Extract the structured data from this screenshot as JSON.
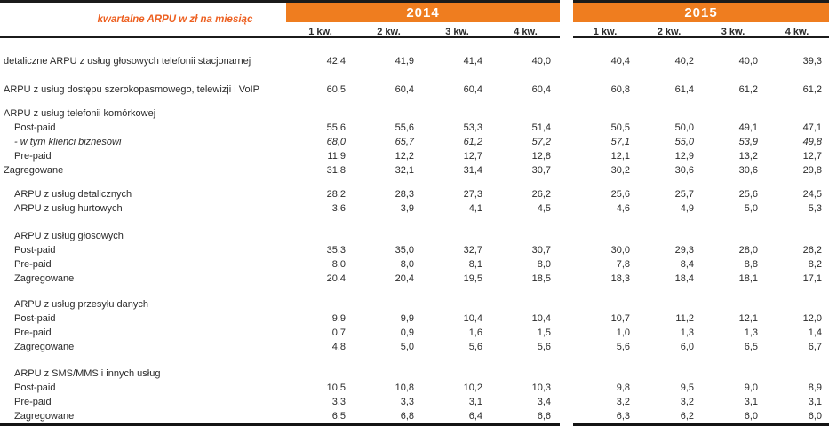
{
  "chart_data": {
    "type": "table",
    "title": "kwartalne ARPU w zł na miesiąc",
    "column_groups": [
      "2014",
      "2015"
    ],
    "quarter_labels": [
      "1 kw.",
      "2 kw.",
      "3 kw.",
      "4 kw."
    ],
    "unit": "zł / miesiąc",
    "rows": [
      {
        "spacer": 18
      },
      {
        "label": "detaliczne ARPU z usług głosowych telefonii stacjonarnej",
        "indent": 0,
        "italic": false,
        "y2014": [
          "42,4",
          "41,9",
          "41,4",
          "40,0"
        ],
        "y2015": [
          "40,4",
          "40,2",
          "40,0",
          "39,3"
        ]
      },
      {
        "spacer": 16
      },
      {
        "label": "ARPU z usług dostępu szerokopasmowego, telewizji i VoIP",
        "indent": 0,
        "italic": false,
        "y2014": [
          "60,5",
          "60,4",
          "60,4",
          "60,4"
        ],
        "y2015": [
          "60,8",
          "61,4",
          "61,2",
          "61,2"
        ]
      },
      {
        "spacer": 11
      },
      {
        "label": "ARPU z usług telefonii komórkowej",
        "indent": 0,
        "italic": false,
        "y2014": null,
        "y2015": null
      },
      {
        "label": "Post-paid",
        "indent": 1,
        "italic": false,
        "y2014": [
          "55,6",
          "55,6",
          "53,3",
          "51,4"
        ],
        "y2015": [
          "50,5",
          "50,0",
          "49,1",
          "47,1"
        ]
      },
      {
        "label": "- w tym klienci biznesowi",
        "indent": 1,
        "italic": true,
        "y2014": [
          "68,0",
          "65,7",
          "61,2",
          "57,2"
        ],
        "y2015": [
          "57,1",
          "55,0",
          "53,9",
          "49,8"
        ]
      },
      {
        "label": "Pre-paid",
        "indent": 1,
        "italic": false,
        "y2014": [
          "11,9",
          "12,2",
          "12,7",
          "12,8"
        ],
        "y2015": [
          "12,1",
          "12,9",
          "13,2",
          "12,7"
        ]
      },
      {
        "label": "Zagregowane",
        "indent": 0,
        "italic": false,
        "y2014": [
          "31,8",
          "32,1",
          "31,4",
          "30,7"
        ],
        "y2015": [
          "30,2",
          "30,6",
          "30,6",
          "29,8"
        ]
      },
      {
        "spacer": 11
      },
      {
        "label": "ARPU z usług detalicznych",
        "indent": 1,
        "italic": false,
        "y2014": [
          "28,2",
          "28,3",
          "27,3",
          "26,2"
        ],
        "y2015": [
          "25,6",
          "25,7",
          "25,6",
          "24,5"
        ]
      },
      {
        "label": "ARPU z usług hurtowych",
        "indent": 1,
        "italic": false,
        "y2014": [
          "3,6",
          "3,9",
          "4,1",
          "4,5"
        ],
        "y2015": [
          "4,6",
          "4,9",
          "5,0",
          "5,3"
        ]
      },
      {
        "spacer": 15
      },
      {
        "label": "ARPU z usług głosowych",
        "indent": 1,
        "italic": false,
        "y2014": null,
        "y2015": null
      },
      {
        "label": "Post-paid",
        "indent": 1,
        "italic": false,
        "y2014": [
          "35,3",
          "35,0",
          "32,7",
          "30,7"
        ],
        "y2015": [
          "30,0",
          "29,3",
          "28,0",
          "26,2"
        ]
      },
      {
        "label": "Pre-paid",
        "indent": 1,
        "italic": false,
        "y2014": [
          "8,0",
          "8,0",
          "8,1",
          "8,0"
        ],
        "y2015": [
          "7,8",
          "8,4",
          "8,8",
          "8,2"
        ]
      },
      {
        "label": "Zagregowane",
        "indent": 1,
        "italic": false,
        "y2014": [
          "20,4",
          "20,4",
          "19,5",
          "18,5"
        ],
        "y2015": [
          "18,3",
          "18,4",
          "18,1",
          "17,1"
        ]
      },
      {
        "spacer": 13
      },
      {
        "label": "ARPU z usług przesyłu danych",
        "indent": 1,
        "italic": false,
        "y2014": null,
        "y2015": null
      },
      {
        "label": "Post-paid",
        "indent": 1,
        "italic": false,
        "y2014": [
          "9,9",
          "9,9",
          "10,4",
          "10,4"
        ],
        "y2015": [
          "10,7",
          "11,2",
          "12,1",
          "12,0"
        ]
      },
      {
        "label": "Pre-paid",
        "indent": 1,
        "italic": false,
        "y2014": [
          "0,7",
          "0,9",
          "1,6",
          "1,5"
        ],
        "y2015": [
          "1,0",
          "1,3",
          "1,3",
          "1,4"
        ]
      },
      {
        "label": "Zagregowane",
        "indent": 1,
        "italic": false,
        "y2014": [
          "4,8",
          "5,0",
          "5,6",
          "5,6"
        ],
        "y2015": [
          "5,6",
          "6,0",
          "6,5",
          "6,7"
        ]
      },
      {
        "spacer": 14
      },
      {
        "label": "ARPU z SMS/MMS i innych usług",
        "indent": 1,
        "italic": false,
        "y2014": null,
        "y2015": null
      },
      {
        "label": "Post-paid",
        "indent": 1,
        "italic": false,
        "y2014": [
          "10,5",
          "10,8",
          "10,2",
          "10,3"
        ],
        "y2015": [
          "9,8",
          "9,5",
          "9,0",
          "8,9"
        ]
      },
      {
        "label": "Pre-paid",
        "indent": 1,
        "italic": false,
        "y2014": [
          "3,3",
          "3,3",
          "3,1",
          "3,4"
        ],
        "y2015": [
          "3,2",
          "3,2",
          "3,1",
          "3,1"
        ]
      },
      {
        "label": "Zagregowane",
        "indent": 1,
        "italic": false,
        "y2014": [
          "6,5",
          "6,8",
          "6,4",
          "6,6"
        ],
        "y2015": [
          "6,3",
          "6,2",
          "6,0",
          "6,0"
        ]
      }
    ],
    "colors": {
      "band": "#ef7d1f",
      "title_text": "#ed6021",
      "body_text": "#2a2a2a",
      "rule": "#1b1b1b"
    }
  }
}
